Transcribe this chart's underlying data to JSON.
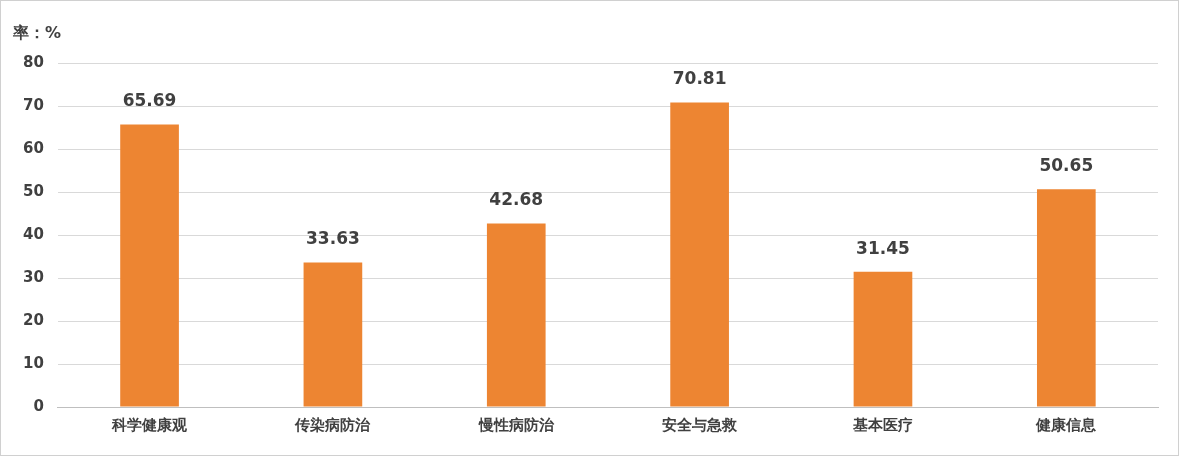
{
  "chart_data": {
    "type": "bar",
    "ylabel": "率：%",
    "categories": [
      "科学健康观",
      "传染病防治",
      "慢性病防治",
      "安全与急救",
      "基本医疗",
      "健康信息"
    ],
    "values": [
      65.69,
      33.63,
      42.68,
      70.81,
      31.45,
      50.65
    ],
    "color": "#ed8532",
    "ylim": [
      0,
      80
    ],
    "yticks": [
      0,
      10,
      20,
      30,
      40,
      50,
      60,
      70,
      80
    ],
    "grid": "y",
    "data_labels": true
  }
}
